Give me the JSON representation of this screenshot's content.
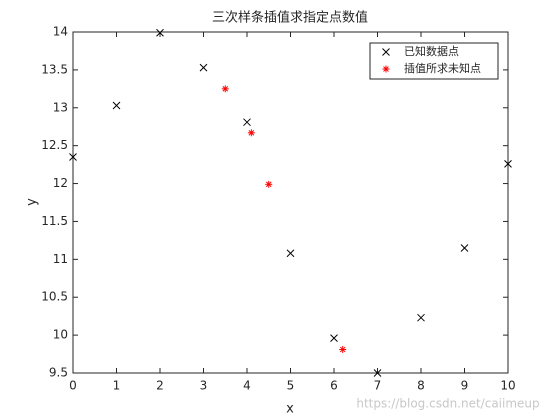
{
  "chart_data": {
    "type": "scatter",
    "title": "三次样条插值求指定点数值",
    "x_label": "x",
    "y_label": "y",
    "series": [
      {
        "name": "已知数据点",
        "color": "#000000",
        "marker": "x",
        "x": [
          0,
          1,
          2,
          3,
          4,
          5,
          6,
          7,
          8,
          9,
          10
        ],
        "values": [
          12.35,
          13.03,
          13.99,
          13.53,
          12.81,
          11.08,
          9.96,
          9.5,
          10.23,
          11.15,
          12.26
        ]
      },
      {
        "name": "插值所求未知点",
        "color": "#ff0000",
        "marker": "*",
        "x": [
          3.5,
          4.1,
          4.5,
          6.2
        ],
        "values": [
          13.25,
          12.67,
          11.99,
          9.81
        ]
      }
    ],
    "xlim": [
      0,
      10
    ],
    "xticks": [
      0,
      1,
      2,
      3,
      4,
      5,
      6,
      7,
      8,
      9,
      10
    ],
    "ylim": [
      9.5,
      14
    ],
    "yticks": [
      9.5,
      10,
      10.5,
      11,
      11.5,
      12,
      12.5,
      13,
      13.5,
      14
    ],
    "grid": false,
    "legend_location": "northeast",
    "watermark": "https://blog.csdn.net/caiimeup"
  }
}
